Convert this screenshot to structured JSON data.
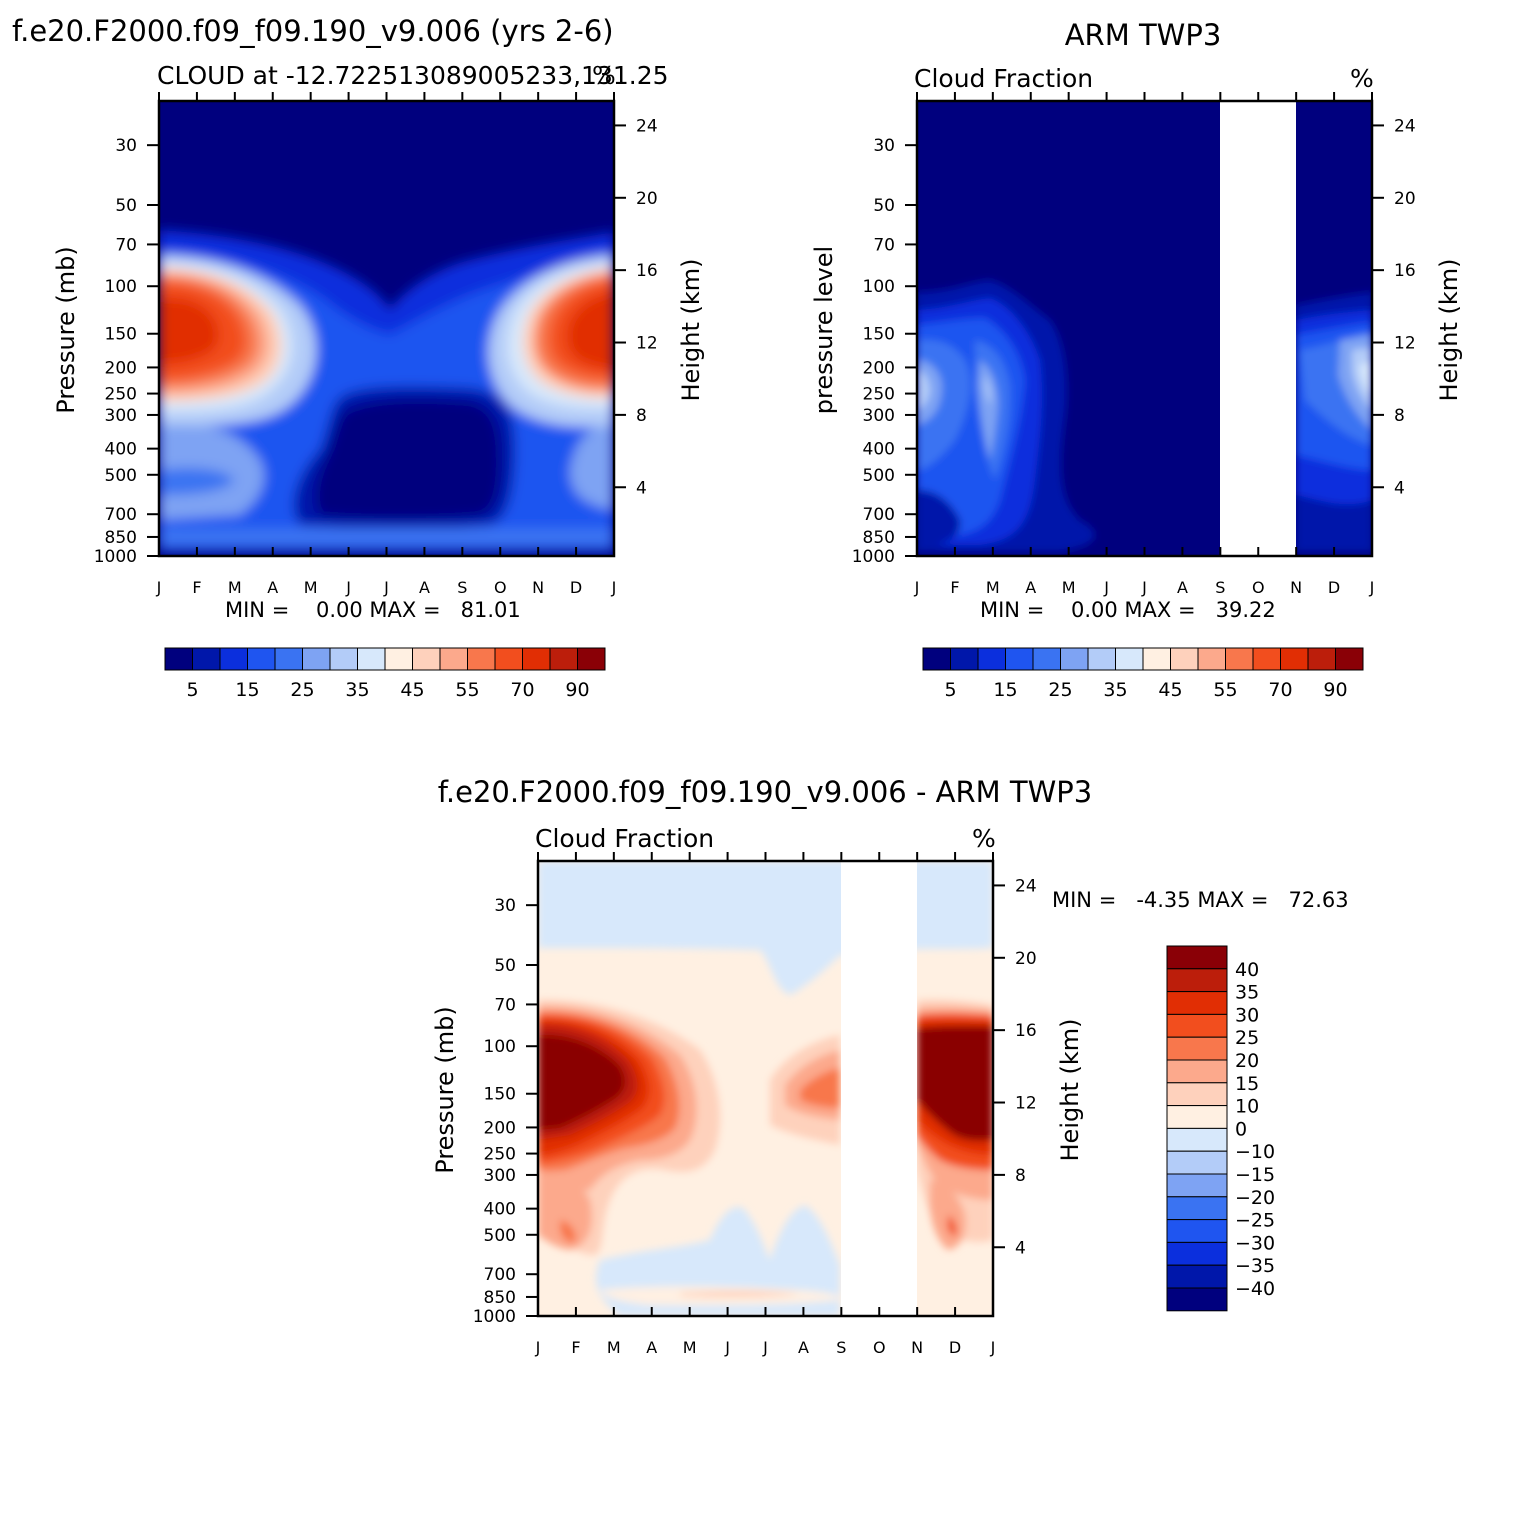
{
  "chart_data": [
    {
      "type": "heatmap",
      "panel": "model",
      "title": "f.e20.F2000.f09_f09.190_v9.006 (yrs 2-6)",
      "subtitle": "CLOUD at -12.722513089005233,131.25",
      "units": "%",
      "xlabel": "",
      "ylabel_left": "Pressure (mb)",
      "ylabel_right": "Height (km)",
      "x_ticks": [
        "J",
        "F",
        "M",
        "A",
        "M",
        "J",
        "J",
        "A",
        "S",
        "O",
        "N",
        "D",
        "J"
      ],
      "y_ticks_left": [
        "30",
        "50",
        "70",
        "100",
        "150",
        "200",
        "250",
        "300",
        "400",
        "500",
        "700",
        "850",
        "1000"
      ],
      "y_ticks_right": [
        "24",
        "20",
        "16",
        "12",
        "8",
        "4"
      ],
      "stats": "MIN =    0.00 MAX =   81.01",
      "colorbar_labels": [
        "5",
        "15",
        "25",
        "35",
        "45",
        "55",
        "70",
        "90"
      ]
    },
    {
      "type": "heatmap",
      "panel": "observations",
      "title": "ARM TWP3",
      "subtitle": "Cloud Fraction",
      "units": "%",
      "xlabel": "",
      "ylabel_left": "pressure level",
      "ylabel_right": "Height (km)",
      "x_ticks": [
        "J",
        "F",
        "M",
        "A",
        "M",
        "J",
        "J",
        "A",
        "S",
        "O",
        "N",
        "D",
        "J"
      ],
      "y_ticks_left": [
        "30",
        "50",
        "70",
        "100",
        "150",
        "200",
        "250",
        "300",
        "400",
        "500",
        "700",
        "850",
        "1000"
      ],
      "y_ticks_right": [
        "24",
        "20",
        "16",
        "12",
        "8",
        "4"
      ],
      "missing_months": [
        "S",
        "O"
      ],
      "stats": "MIN =    0.00 MAX =   39.22",
      "colorbar_labels": [
        "5",
        "15",
        "25",
        "35",
        "45",
        "55",
        "70",
        "90"
      ]
    },
    {
      "type": "heatmap",
      "panel": "difference",
      "title": "f.e20.F2000.f09_f09.190_v9.006 - ARM TWP3",
      "subtitle": "Cloud Fraction",
      "units": "%",
      "xlabel": "",
      "ylabel_left": "Pressure (mb)",
      "ylabel_right": "Height (km)",
      "x_ticks": [
        "J",
        "F",
        "M",
        "A",
        "M",
        "J",
        "J",
        "A",
        "S",
        "O",
        "N",
        "D",
        "J"
      ],
      "y_ticks_left": [
        "30",
        "50",
        "70",
        "100",
        "150",
        "200",
        "250",
        "300",
        "400",
        "500",
        "700",
        "850",
        "1000"
      ],
      "y_ticks_right": [
        "24",
        "20",
        "16",
        "12",
        "8",
        "4"
      ],
      "missing_months": [
        "S",
        "O"
      ],
      "stats": "MIN =   -4.35 MAX =   72.63",
      "colorbar_labels": [
        "40",
        "35",
        "30",
        "25",
        "20",
        "15",
        "10",
        "0",
        "-10",
        "-15",
        "-20",
        "-25",
        "-30",
        "-35",
        "-40"
      ]
    }
  ],
  "colors": {
    "seq_colormap": [
      "#00007e",
      "#0017aa",
      "#0b2fdd",
      "#1f55f0",
      "#3a73f2",
      "#7ea3f3",
      "#b3ccf8",
      "#d7e8fb",
      "#fff0e2",
      "#fed1bc",
      "#fca98c",
      "#f8774c",
      "#f24e1e",
      "#e12e04",
      "#bc1e0b",
      "#8a0006"
    ],
    "diff_colormap": [
      "#8a0006",
      "#bc1e0b",
      "#e12e04",
      "#f24e1e",
      "#f8774c",
      "#fca98c",
      "#fed1bc",
      "#fff0e2",
      "#d7e8fb",
      "#b3ccf8",
      "#7ea3f3",
      "#3a73f2",
      "#1f55f0",
      "#0b2fdd",
      "#0017aa",
      "#00007e"
    ]
  }
}
